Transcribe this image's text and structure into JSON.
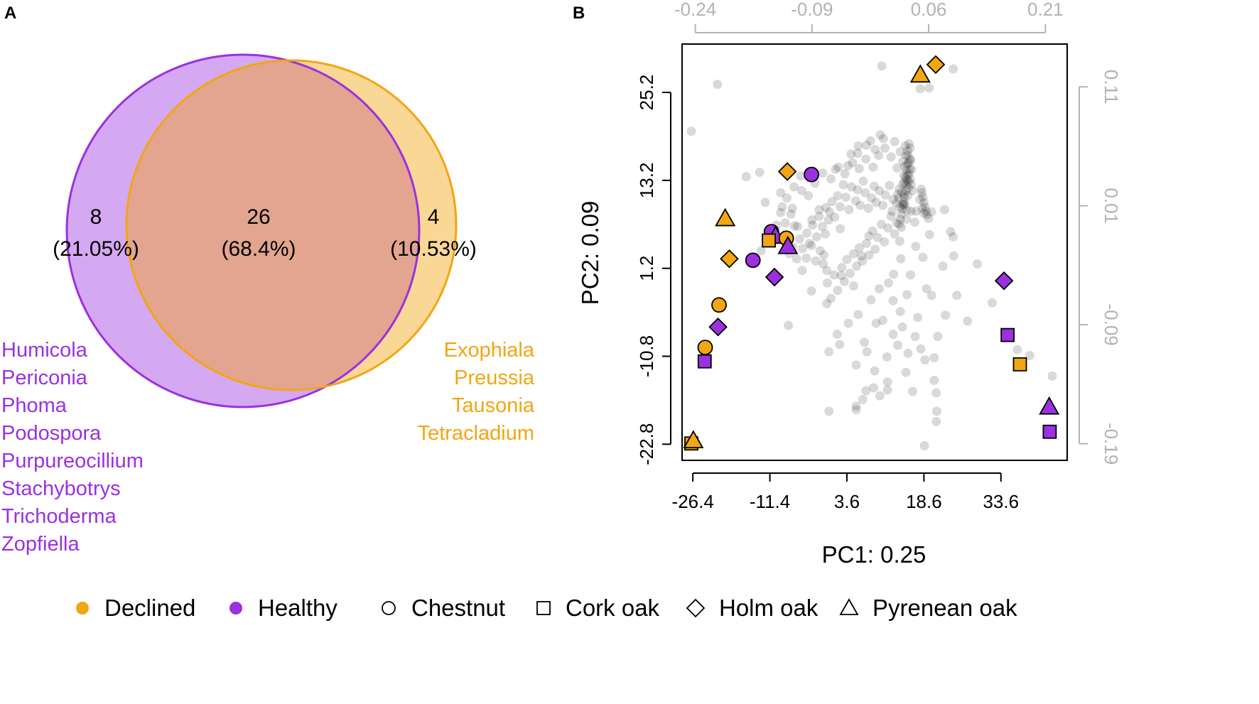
{
  "colors": {
    "declined": "#F2A613",
    "healthy": "#9B30E0",
    "overlap": "#E3A590",
    "grey_points": "#000000",
    "top_right_axis": "#B3B3B3"
  },
  "panel_labels": {
    "a": "A",
    "b": "B"
  },
  "venn": {
    "left": {
      "count": "8",
      "percent": "(21.05%)",
      "genera": [
        "Humicola",
        "Periconia",
        "Phoma",
        "Podospora",
        "Purpureocillium",
        "Stachybotrys",
        "Trichoderma",
        "Zopfiella"
      ]
    },
    "middle": {
      "count": "26",
      "percent": "(68.4%)"
    },
    "right": {
      "count": "4",
      "percent": "(10.53%)",
      "genera": [
        "Exophiala",
        "Preussia",
        "Tausonia",
        "Tetracladium"
      ]
    }
  },
  "legend": {
    "status": [
      {
        "label": "Declined",
        "color_key": "declined"
      },
      {
        "label": "Healthy",
        "color_key": "healthy"
      }
    ],
    "species": [
      {
        "label": "Chestnut",
        "shape": "circle"
      },
      {
        "label": "Cork oak",
        "shape": "square"
      },
      {
        "label": "Holm oak",
        "shape": "diamond"
      },
      {
        "label": "Pyrenean oak",
        "shape": "triangle"
      }
    ]
  },
  "chart_data": [
    {
      "type": "venn",
      "sets": [
        "Healthy",
        "Declined"
      ],
      "regions": [
        {
          "set": "Healthy only",
          "count": 8,
          "percent": 21.05
        },
        {
          "set": "Both",
          "count": 26,
          "percent": 68.4
        },
        {
          "set": "Declined only",
          "count": 4,
          "percent": 10.53
        }
      ]
    },
    {
      "type": "scatter",
      "title": "",
      "xlabel": "PC1: 0.25",
      "ylabel": "PC2: 0.09",
      "xlim": [
        -28.5,
        46.5
      ],
      "ylim": [
        -25.0,
        31.8
      ],
      "x_ticks": [
        "-26.4",
        "-11.4",
        "3.6",
        "18.6",
        "33.6"
      ],
      "y_ticks": [
        "-22.8",
        "-10.8",
        "1.2",
        "13.2",
        "25.2"
      ],
      "top_axis": {
        "lim": [
          -0.257,
          0.238
        ],
        "ticks": [
          "-0.24",
          "-0.09",
          "0.06",
          "0.21"
        ]
      },
      "right_axis": {
        "lim": [
          -0.204,
          0.146
        ],
        "ticks": [
          "-0.19",
          "-0.09",
          "0.01",
          "0.11"
        ]
      },
      "samples": [
        {
          "x": 20.9,
          "y": 29.0,
          "status": "Declined",
          "species": "Holm oak"
        },
        {
          "x": 17.9,
          "y": 27.6,
          "status": "Declined",
          "species": "Pyrenean oak"
        },
        {
          "x": -8.0,
          "y": 14.4,
          "status": "Declined",
          "species": "Holm oak"
        },
        {
          "x": -3.3,
          "y": 14.0,
          "status": "Healthy",
          "species": "Chestnut"
        },
        {
          "x": -20.1,
          "y": 8.0,
          "status": "Declined",
          "species": "Pyrenean oak"
        },
        {
          "x": -11.1,
          "y": 6.2,
          "status": "Healthy",
          "species": "Chestnut"
        },
        {
          "x": -10.3,
          "y": 5.6,
          "status": "Healthy",
          "species": "Pyrenean oak"
        },
        {
          "x": -11.6,
          "y": 5.0,
          "status": "Declined",
          "species": "Cork oak"
        },
        {
          "x": -8.2,
          "y": 5.3,
          "status": "Declined",
          "species": "Chestnut"
        },
        {
          "x": -7.9,
          "y": 4.2,
          "status": "Healthy",
          "species": "Pyrenean oak"
        },
        {
          "x": -19.3,
          "y": 2.5,
          "status": "Declined",
          "species": "Holm oak"
        },
        {
          "x": -14.7,
          "y": 2.3,
          "status": "Healthy",
          "species": "Chestnut"
        },
        {
          "x": -10.5,
          "y": 0.0,
          "status": "Healthy",
          "species": "Holm oak"
        },
        {
          "x": -21.3,
          "y": -3.8,
          "status": "Declined",
          "species": "Chestnut"
        },
        {
          "x": -21.5,
          "y": -6.8,
          "status": "Healthy",
          "species": "Holm oak"
        },
        {
          "x": -24.0,
          "y": -9.6,
          "status": "Declined",
          "species": "Chestnut"
        },
        {
          "x": -24.1,
          "y": -11.5,
          "status": "Healthy",
          "species": "Cork oak"
        },
        {
          "x": -26.7,
          "y": -22.7,
          "status": "Declined",
          "species": "Cork oak"
        },
        {
          "x": -26.3,
          "y": -22.3,
          "status": "Declined",
          "species": "Pyrenean oak"
        },
        {
          "x": 34.2,
          "y": -0.5,
          "status": "Healthy",
          "species": "Holm oak"
        },
        {
          "x": 34.9,
          "y": -7.9,
          "status": "Healthy",
          "species": "Cork oak"
        },
        {
          "x": 37.3,
          "y": -11.9,
          "status": "Declined",
          "species": "Cork oak"
        },
        {
          "x": 43.0,
          "y": -17.7,
          "status": "Healthy",
          "species": "Pyrenean oak"
        },
        {
          "x": 43.1,
          "y": -21.1,
          "status": "Healthy",
          "species": "Cork oak"
        }
      ],
      "taxa_points": [
        [
          24.3,
          28.4
        ],
        [
          10.4,
          28.8
        ],
        [
          19.6,
          25.8
        ],
        [
          17.9,
          25.7
        ],
        [
          -21.6,
          26.3
        ],
        [
          -26.7,
          19.9
        ],
        [
          10.1,
          19.4
        ],
        [
          8.2,
          18.6
        ],
        [
          5.7,
          16.9
        ],
        [
          3.8,
          15.2
        ],
        [
          1.4,
          14.7
        ],
        [
          -13.4,
          14.3
        ],
        [
          -16.0,
          13.7
        ],
        [
          -5.2,
          11.8
        ],
        [
          -9.3,
          11.5
        ],
        [
          -12.3,
          10.2
        ],
        [
          -7.0,
          9.4
        ],
        [
          -1.8,
          9.2
        ],
        [
          0.2,
          8.9
        ],
        [
          -3.2,
          7.8
        ],
        [
          -6.6,
          7.0
        ],
        [
          2.3,
          6.6
        ],
        [
          -0.6,
          5.9
        ],
        [
          7.9,
          5.6
        ],
        [
          13.9,
          4.9
        ],
        [
          19.7,
          5.8
        ],
        [
          17.0,
          4.2
        ],
        [
          -13.1,
          3.6
        ],
        [
          -0.9,
          3.0
        ],
        [
          6.4,
          2.9
        ],
        [
          14.1,
          2.5
        ],
        [
          18.4,
          2.7
        ],
        [
          24.4,
          2.9
        ],
        [
          -5.1,
          0.9
        ],
        [
          -0.3,
          0.9
        ],
        [
          2.5,
          0.2
        ],
        [
          12.7,
          0.4
        ],
        [
          22.3,
          1.5
        ],
        [
          29.0,
          1.8
        ],
        [
          -3.3,
          -1.9
        ],
        [
          4.9,
          -1.2
        ],
        [
          9.9,
          -1.6
        ],
        [
          15.3,
          -2.4
        ],
        [
          20.1,
          -2.5
        ],
        [
          25.0,
          -2.5
        ],
        [
          -0.3,
          -3.6
        ],
        [
          12.6,
          -3.2
        ],
        [
          31.9,
          -3.5
        ],
        [
          5.8,
          -5.1
        ],
        [
          3.9,
          -6.3
        ],
        [
          9.3,
          -6.3
        ],
        [
          14.4,
          -6.8
        ],
        [
          -7.8,
          -6.6
        ],
        [
          1.7,
          -7.8
        ],
        [
          12.6,
          -7.8
        ],
        [
          16.9,
          -8.1
        ],
        [
          21.3,
          -8.1
        ],
        [
          7.0,
          -8.9
        ],
        [
          2.2,
          -9.2
        ],
        [
          13.5,
          -9.3
        ],
        [
          18.0,
          -9.8
        ],
        [
          36.8,
          -9.9
        ],
        [
          0.1,
          -10.2
        ],
        [
          7.5,
          -10.2
        ],
        [
          15.5,
          -10.4
        ],
        [
          11.4,
          -10.9
        ],
        [
          18.8,
          -11.3
        ],
        [
          20.6,
          -11.0
        ],
        [
          39.2,
          -10.7
        ],
        [
          5.4,
          -12.0
        ],
        [
          9.0,
          -12.8
        ],
        [
          15.1,
          -13.0
        ],
        [
          11.5,
          -14.3
        ],
        [
          20.6,
          -14.1
        ],
        [
          8.8,
          -15.1
        ],
        [
          11.5,
          -15.4
        ],
        [
          7.3,
          -15.5
        ],
        [
          10.0,
          -16.2
        ],
        [
          16.4,
          -15.6
        ],
        [
          21.0,
          -15.8
        ],
        [
          6.7,
          -16.7
        ],
        [
          5.4,
          -18.1
        ],
        [
          0.1,
          -18.3
        ],
        [
          21.1,
          -18.3
        ],
        [
          5.4,
          -17.6
        ],
        [
          21.0,
          -19.7
        ],
        [
          18.7,
          -23.0
        ],
        [
          43.6,
          -13.5
        ],
        [
          14.5,
          9.9
        ],
        [
          14.7,
          9.8
        ],
        [
          12.6,
          10.6
        ],
        [
          12.4,
          9.0
        ],
        [
          11.9,
          12.5
        ],
        [
          11.1,
          11.2
        ],
        [
          10.6,
          9.8
        ],
        [
          9.9,
          11.8
        ],
        [
          9.3,
          10.2
        ],
        [
          8.9,
          12.4
        ],
        [
          8.4,
          10.8
        ],
        [
          7.8,
          9.4
        ],
        [
          7.2,
          11.5
        ],
        [
          6.8,
          13.1
        ],
        [
          6.2,
          9.8
        ],
        [
          5.7,
          11.9
        ],
        [
          5.3,
          10.4
        ],
        [
          4.5,
          12.3
        ],
        [
          4.0,
          9.2
        ],
        [
          3.4,
          10.9
        ],
        [
          2.9,
          12.6
        ],
        [
          2.3,
          9.6
        ],
        [
          1.8,
          11.1
        ],
        [
          1.2,
          8.2
        ],
        [
          0.7,
          10.3
        ],
        [
          0.0,
          7.8
        ],
        [
          -0.5,
          9.5
        ],
        [
          -1.2,
          6.9
        ],
        [
          -1.8,
          8.3
        ],
        [
          -2.3,
          5.5
        ],
        [
          -3.1,
          7.1
        ],
        [
          -3.7,
          4.6
        ],
        [
          -4.2,
          6.0
        ],
        [
          -5.0,
          3.9
        ],
        [
          -5.6,
          5.2
        ],
        [
          -6.2,
          2.5
        ],
        [
          -6.9,
          4.1
        ],
        [
          -7.6,
          3.2
        ],
        [
          16.4,
          11.8
        ],
        [
          16.1,
          9.0
        ],
        [
          15.6,
          13.0
        ],
        [
          15.2,
          7.9
        ],
        [
          14.8,
          11.3
        ],
        [
          14.2,
          6.8
        ],
        [
          13.8,
          12.0
        ],
        [
          13.3,
          7.4
        ],
        [
          12.9,
          5.9
        ],
        [
          12.2,
          8.3
        ],
        [
          11.6,
          6.7
        ],
        [
          10.9,
          4.8
        ],
        [
          10.3,
          7.2
        ],
        [
          9.6,
          5.4
        ],
        [
          9.1,
          3.8
        ],
        [
          8.6,
          6.3
        ],
        [
          7.9,
          3.0
        ],
        [
          7.4,
          4.6
        ],
        [
          6.6,
          2.2
        ],
        [
          6.0,
          4.0
        ],
        [
          5.5,
          1.5
        ],
        [
          4.9,
          3.2
        ],
        [
          4.2,
          0.5
        ],
        [
          3.6,
          2.4
        ],
        [
          3.1,
          -0.6
        ],
        [
          2.6,
          1.3
        ],
        [
          1.8,
          -1.8
        ],
        [
          1.1,
          0.3
        ],
        [
          0.5,
          -2.9
        ],
        [
          -0.2,
          -0.8
        ],
        [
          -1.0,
          1.8
        ],
        [
          -1.6,
          3.6
        ],
        [
          -2.5,
          2.2
        ],
        [
          -3.3,
          4.3
        ],
        [
          -4.3,
          2.6
        ],
        [
          -6.0,
          6.9
        ],
        [
          -7.3,
          8.6
        ],
        [
          -8.4,
          7.4
        ],
        [
          -9.3,
          8.8
        ],
        [
          -10.1,
          7.1
        ],
        [
          -9.0,
          9.6
        ],
        [
          -8.1,
          10.8
        ],
        [
          -6.7,
          12.3
        ],
        [
          -5.4,
          13.8
        ],
        [
          -3.9,
          11.1
        ],
        [
          -2.6,
          12.8
        ],
        [
          -1.1,
          14.2
        ],
        [
          0.5,
          13.4
        ],
        [
          1.9,
          15.0
        ],
        [
          3.2,
          14.1
        ],
        [
          4.7,
          15.6
        ],
        [
          6.0,
          14.8
        ],
        [
          7.3,
          16.1
        ],
        [
          8.7,
          15.0
        ],
        [
          9.8,
          16.6
        ],
        [
          11.0,
          17.6
        ],
        [
          12.2,
          16.4
        ],
        [
          12.9,
          18.5
        ],
        [
          13.4,
          14.9
        ],
        [
          14.0,
          17.1
        ],
        [
          14.5,
          15.8
        ],
        [
          10.7,
          18.9
        ],
        [
          9.1,
          17.4
        ],
        [
          7.4,
          18.0
        ],
        [
          5.8,
          17.9
        ],
        [
          4.4,
          16.8
        ],
        [
          18.1,
          12.0
        ],
        [
          18.2,
          11.5
        ],
        [
          18.4,
          10.9
        ],
        [
          18.6,
          10.2
        ],
        [
          18.8,
          9.6
        ],
        [
          19.0,
          9.0
        ],
        [
          19.2,
          8.5
        ],
        [
          19.5,
          8.0
        ],
        [
          18.3,
          9.4
        ],
        [
          18.6,
          8.7
        ],
        [
          17.8,
          10.6
        ],
        [
          20.1,
          8.9
        ],
        [
          17.1,
          9.0
        ],
        [
          16.8,
          7.5
        ],
        [
          22.6,
          9.2
        ],
        [
          23.8,
          6.2
        ],
        [
          24.3,
          5.5
        ],
        [
          16.0,
          0.3
        ],
        [
          19.1,
          -1.6
        ],
        [
          17.4,
          -5.5
        ],
        [
          14.0,
          -4.7
        ],
        [
          11.7,
          -0.8
        ],
        [
          8.3,
          -3.1
        ],
        [
          10.6,
          -5.9
        ],
        [
          22.8,
          -5.2
        ],
        [
          27.1,
          -6.0
        ],
        [
          15.4,
          17.2
        ],
        [
          15.9,
          17.6
        ],
        [
          15.5,
          16.6
        ],
        [
          15.9,
          16.1
        ],
        [
          15.4,
          15.4
        ],
        [
          15.7,
          18.2
        ],
        [
          15.0,
          17.9
        ],
        [
          15.2,
          14.6
        ],
        [
          15.4,
          13.9
        ],
        [
          15.3,
          13.3
        ],
        [
          15.2,
          12.6
        ],
        [
          15.1,
          11.8
        ],
        [
          14.8,
          10.9
        ],
        [
          14.6,
          10.2
        ],
        [
          14.4,
          9.3
        ],
        [
          14.2,
          8.6
        ],
        [
          14.0,
          7.9
        ],
        [
          13.8,
          7.2
        ],
        [
          15.6,
          12.2
        ],
        [
          15.5,
          11.1
        ],
        [
          14.9,
          10.0
        ],
        [
          15.3,
          9.1
        ],
        [
          14.5,
          12.7
        ],
        [
          14.3,
          11.6
        ],
        [
          13.7,
          10.8
        ],
        [
          13.9,
          9.6
        ],
        [
          15.8,
          14.7
        ],
        [
          16.0,
          15.9
        ],
        [
          15.1,
          16.6
        ],
        [
          14.9,
          15.1
        ],
        [
          14.7,
          13.9
        ],
        [
          15.9,
          13.4
        ],
        [
          15.7,
          14.1
        ],
        [
          15.6,
          15.6
        ],
        [
          15.0,
          13.6
        ],
        [
          14.8,
          12.9
        ],
        [
          16.2,
          14.7
        ],
        [
          13.5,
          11.3
        ],
        [
          13.2,
          10.1
        ],
        [
          16.1,
          12.7
        ]
      ]
    }
  ],
  "b_axes": {
    "xlabel": "PC1: 0.25",
    "ylabel": "PC2: 0.09",
    "x_ticks": [
      "-26.4",
      "-11.4",
      "3.6",
      "18.6",
      "33.6"
    ],
    "y_ticks": [
      "-22.8",
      "-10.8",
      "1.2",
      "13.2",
      "25.2"
    ],
    "top_ticks": [
      "-0.24",
      "-0.09",
      "0.06",
      "0.21"
    ],
    "right_ticks": [
      "-0.19",
      "-0.09",
      "0.01",
      "0.11"
    ]
  }
}
